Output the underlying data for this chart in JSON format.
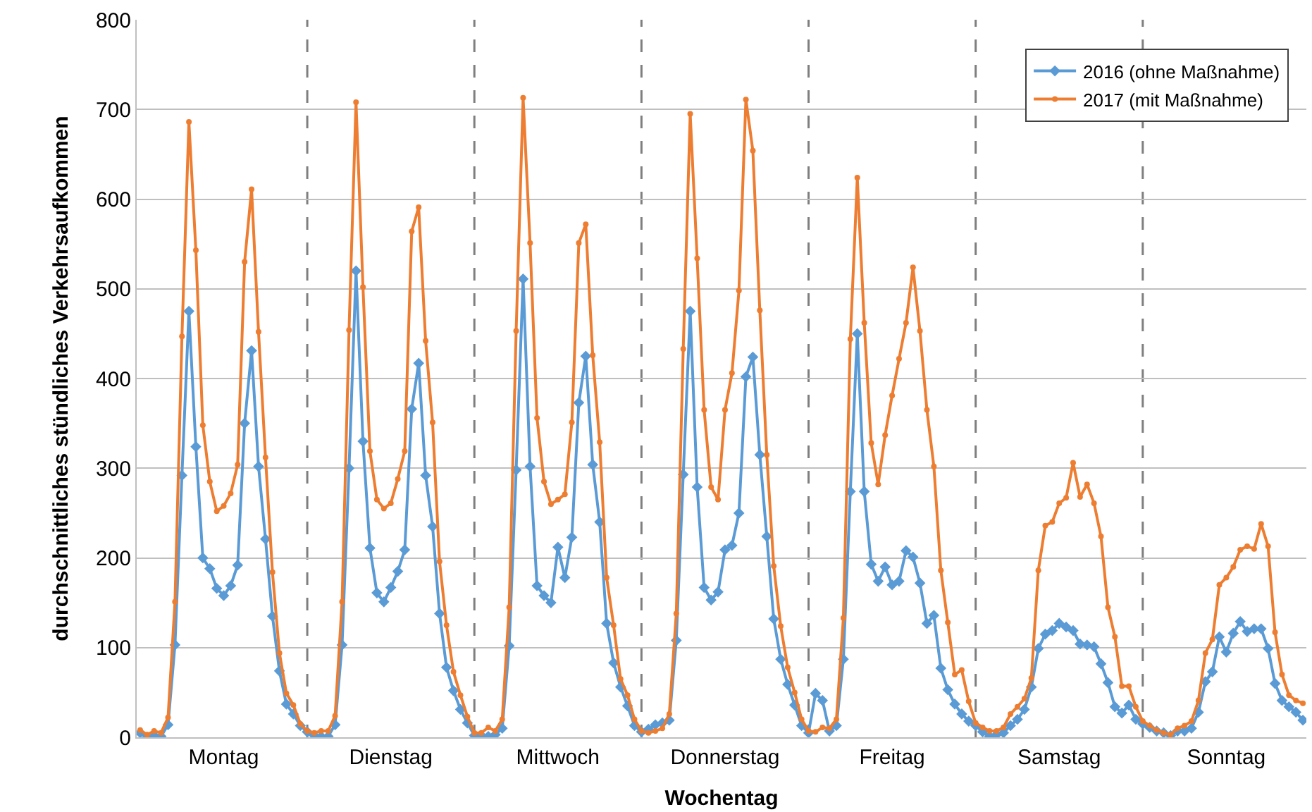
{
  "chart_data": {
    "type": "line",
    "xlabel": "Wochentag",
    "ylabel": "durchschnittliches stündliches Verkehrsaufkommen",
    "categories": [
      null,
      null,
      null,
      null,
      null,
      null,
      null,
      null,
      null,
      null,
      null,
      null,
      "Montag",
      null,
      null,
      null,
      null,
      null,
      null,
      null,
      null,
      null,
      null,
      null,
      null,
      null,
      null,
      null,
      null,
      null,
      null,
      null,
      null,
      null,
      null,
      null,
      "Dienstag",
      null,
      null,
      null,
      null,
      null,
      null,
      null,
      null,
      null,
      null,
      null,
      null,
      null,
      null,
      null,
      null,
      null,
      null,
      null,
      null,
      null,
      null,
      null,
      "Mittwoch",
      null,
      null,
      null,
      null,
      null,
      null,
      null,
      null,
      null,
      null,
      null,
      null,
      null,
      null,
      null,
      null,
      null,
      null,
      null,
      null,
      null,
      null,
      null,
      "Donnerstag",
      null,
      null,
      null,
      null,
      null,
      null,
      null,
      null,
      null,
      null,
      null,
      null,
      null,
      null,
      null,
      null,
      null,
      null,
      null,
      null,
      null,
      null,
      null,
      "Freitag",
      null,
      null,
      null,
      null,
      null,
      null,
      null,
      null,
      null,
      null,
      null,
      null,
      null,
      null,
      null,
      null,
      null,
      null,
      null,
      null,
      null,
      null,
      null,
      "Samstag",
      null,
      null,
      null,
      null,
      null,
      null,
      null,
      null,
      null,
      null,
      null,
      null,
      null,
      null,
      null,
      null,
      null,
      null,
      null,
      null,
      null,
      null,
      null,
      "Sonntag",
      null,
      null,
      null,
      null,
      null,
      null,
      null,
      null,
      null,
      null,
      null
    ],
    "ylim": [
      0,
      800
    ],
    "yticks": [
      0,
      100,
      200,
      300,
      400,
      500,
      600,
      700,
      800
    ],
    "grid": "y",
    "legend": "top right",
    "line_style": "solid",
    "series": [
      {
        "name": "2016 (ohne Maßnahme)",
        "color": "#5b9bd5",
        "marker": "diamond",
        "values": [
          5,
          0,
          2,
          1,
          14,
          103,
          292,
          475,
          324,
          200,
          188,
          166,
          158,
          169,
          192,
          350,
          431,
          302,
          221,
          135,
          74,
          37,
          26,
          13,
          6,
          2,
          1,
          1,
          14,
          103,
          300,
          520,
          330,
          211,
          161,
          151,
          167,
          185,
          209,
          366,
          417,
          292,
          235,
          138,
          78,
          52,
          31,
          16,
          2,
          2,
          1,
          3,
          10,
          102,
          298,
          511,
          302,
          169,
          158,
          150,
          212,
          178,
          223,
          373,
          425,
          304,
          240,
          127,
          83,
          56,
          35,
          13,
          6,
          9,
          14,
          16,
          19,
          108,
          293,
          475,
          279,
          167,
          153,
          162,
          209,
          214,
          250,
          402,
          424,
          315,
          224,
          132,
          87,
          59,
          36,
          13,
          5,
          49,
          41,
          7,
          13,
          87,
          274,
          450,
          274,
          193,
          174,
          190,
          170,
          174,
          208,
          201,
          172,
          127,
          136,
          77,
          53,
          37,
          26,
          18,
          13,
          6,
          1,
          3,
          5,
          13,
          20,
          31,
          56,
          99,
          115,
          119,
          127,
          123,
          119,
          104,
          103,
          101,
          82,
          61,
          34,
          27,
          36,
          20,
          15,
          11,
          7,
          5,
          2,
          7,
          7,
          10,
          28,
          62,
          73,
          112,
          95,
          116,
          129,
          118,
          121,
          121,
          99,
          60,
          41,
          34,
          28,
          19
        ]
      },
      {
        "name": "2017 (mit Maßnahme)",
        "color": "#ed7d31",
        "marker": "circle",
        "values": [
          8,
          3,
          7,
          5,
          22,
          151,
          447,
          686,
          543,
          348,
          285,
          252,
          258,
          272,
          304,
          530,
          611,
          452,
          312,
          184,
          94,
          49,
          36,
          15,
          7,
          5,
          7,
          7,
          24,
          151,
          454,
          708,
          502,
          319,
          265,
          255,
          261,
          288,
          319,
          564,
          591,
          442,
          351,
          196,
          125,
          73,
          47,
          23,
          5,
          5,
          11,
          7,
          20,
          145,
          453,
          713,
          551,
          356,
          285,
          260,
          265,
          271,
          351,
          551,
          572,
          426,
          329,
          178,
          125,
          65,
          47,
          20,
          7,
          5,
          7,
          10,
          26,
          138,
          433,
          695,
          534,
          365,
          279,
          265,
          365,
          406,
          498,
          711,
          654,
          476,
          315,
          191,
          124,
          78,
          50,
          20,
          7,
          6,
          11,
          10,
          20,
          133,
          444,
          624,
          462,
          328,
          282,
          337,
          381,
          422,
          462,
          524,
          453,
          365,
          302,
          186,
          128,
          70,
          75,
          40,
          16,
          11,
          7,
          7,
          11,
          26,
          34,
          43,
          66,
          186,
          236,
          240,
          261,
          267,
          306,
          268,
          282,
          261,
          224,
          145,
          112,
          57,
          57,
          34,
          18,
          13,
          8,
          5,
          3,
          10,
          13,
          18,
          41,
          94,
          109,
          170,
          178,
          190,
          209,
          213,
          210,
          238,
          213,
          117,
          70,
          47,
          41,
          38
        ]
      }
    ]
  }
}
